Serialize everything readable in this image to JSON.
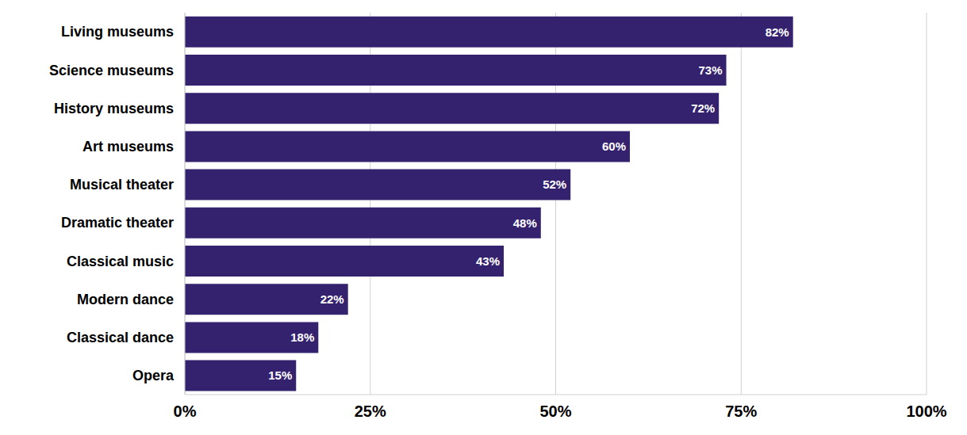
{
  "chart_data": {
    "type": "bar",
    "orientation": "horizontal",
    "categories": [
      "Living museums",
      "Science museums",
      "History museums",
      "Art museums",
      "Musical theater",
      "Dramatic theater",
      "Classical music",
      "Modern dance",
      "Classical dance",
      "Opera"
    ],
    "values": [
      82,
      73,
      72,
      60,
      52,
      48,
      43,
      22,
      18,
      15
    ],
    "value_labels": [
      "82%",
      "73%",
      "72%",
      "60%",
      "52%",
      "48%",
      "43%",
      "22%",
      "18%",
      "15%"
    ],
    "color": "#35226e",
    "xlim": [
      0,
      100
    ],
    "xticks": [
      {
        "value": 0,
        "label": "0%"
      },
      {
        "value": 25,
        "label": "25%"
      },
      {
        "value": 50,
        "label": "50%"
      },
      {
        "value": 75,
        "label": "75%"
      },
      {
        "value": 100,
        "label": "100%"
      }
    ],
    "grid": true,
    "data_labels": true
  }
}
